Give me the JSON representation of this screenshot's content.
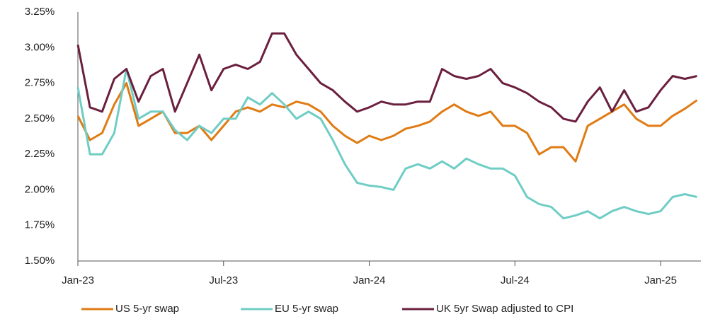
{
  "chart_data": {
    "type": "line",
    "categories": [
      "Jan-23",
      null,
      null,
      null,
      null,
      null,
      null,
      null,
      null,
      null,
      null,
      null,
      "Jul-23",
      null,
      null,
      null,
      null,
      null,
      null,
      null,
      null,
      null,
      null,
      null,
      "Jan-24",
      null,
      null,
      null,
      null,
      null,
      null,
      null,
      null,
      null,
      null,
      null,
      "Jul-24",
      null,
      null,
      null,
      null,
      null,
      null,
      null,
      null,
      null,
      null,
      null,
      "Jan-25",
      null,
      null,
      null
    ],
    "series": [
      {
        "name": "US 5-yr swap",
        "color": "#e07b13",
        "values": [
          2.52,
          2.35,
          2.4,
          2.6,
          2.75,
          2.45,
          2.5,
          2.55,
          2.4,
          2.4,
          2.45,
          2.35,
          2.45,
          2.55,
          2.58,
          2.55,
          2.6,
          2.58,
          2.62,
          2.6,
          2.55,
          2.45,
          2.38,
          2.33,
          2.38,
          2.35,
          2.38,
          2.43,
          2.45,
          2.48,
          2.55,
          2.6,
          2.55,
          2.52,
          2.55,
          2.45,
          2.45,
          2.4,
          2.25,
          2.3,
          2.3,
          2.2,
          2.45,
          2.5,
          2.55,
          2.6,
          2.5,
          2.45,
          2.45,
          2.52,
          2.57,
          2.63
        ]
      },
      {
        "name": "EU 5-yr swap",
        "color": "#6fcdc5",
        "values": [
          2.72,
          2.25,
          2.25,
          2.4,
          2.85,
          2.5,
          2.55,
          2.55,
          2.42,
          2.35,
          2.45,
          2.4,
          2.5,
          2.5,
          2.65,
          2.6,
          2.68,
          2.6,
          2.5,
          2.55,
          2.5,
          2.35,
          2.18,
          2.05,
          2.03,
          2.02,
          2.0,
          2.15,
          2.18,
          2.15,
          2.2,
          2.15,
          2.22,
          2.18,
          2.15,
          2.15,
          2.1,
          1.95,
          1.9,
          1.88,
          1.8,
          1.82,
          1.85,
          1.8,
          1.85,
          1.88,
          1.85,
          1.83,
          1.85,
          1.95,
          1.97,
          1.95
        ]
      },
      {
        "name": "UK 5yr Swap adjusted to CPI",
        "color": "#6b1f3e",
        "values": [
          3.02,
          2.58,
          2.55,
          2.78,
          2.85,
          2.62,
          2.8,
          2.85,
          2.55,
          2.75,
          2.95,
          2.7,
          2.85,
          2.88,
          2.85,
          2.9,
          3.1,
          3.1,
          2.95,
          2.85,
          2.75,
          2.7,
          2.62,
          2.55,
          2.58,
          2.62,
          2.6,
          2.6,
          2.62,
          2.62,
          2.85,
          2.8,
          2.78,
          2.8,
          2.85,
          2.75,
          2.72,
          2.68,
          2.62,
          2.58,
          2.5,
          2.48,
          2.62,
          2.72,
          2.55,
          2.7,
          2.55,
          2.58,
          2.7,
          2.8,
          2.78,
          2.8
        ]
      }
    ],
    "ylim": [
      1.5,
      3.25
    ],
    "yticks": [
      {
        "value": 1.5,
        "label": "1.50%"
      },
      {
        "value": 1.75,
        "label": "1.75%"
      },
      {
        "value": 2.0,
        "label": "2.00%"
      },
      {
        "value": 2.25,
        "label": "2.25%"
      },
      {
        "value": 2.5,
        "label": "2.50%"
      },
      {
        "value": 2.75,
        "label": "2.75%"
      },
      {
        "value": 3.0,
        "label": "3.00%"
      },
      {
        "value": 3.25,
        "label": "3.25%"
      }
    ]
  }
}
